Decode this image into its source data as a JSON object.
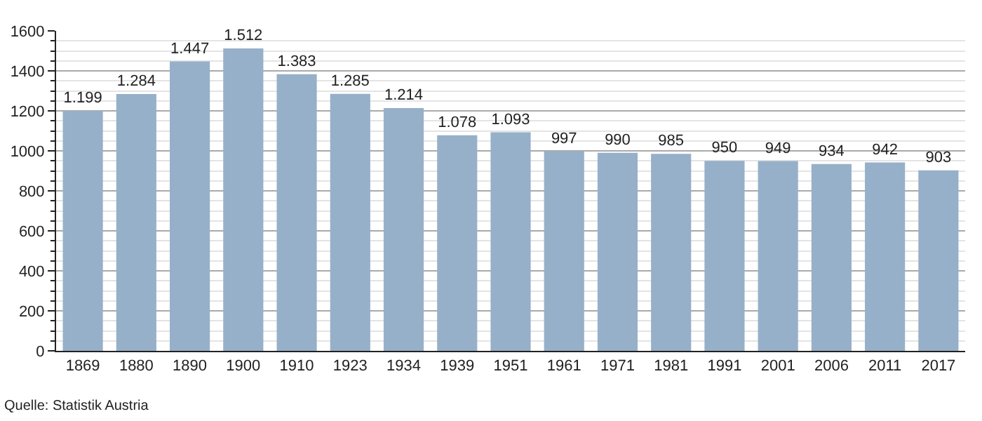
{
  "chart_data": {
    "type": "bar",
    "categories": [
      "1869",
      "1880",
      "1890",
      "1900",
      "1910",
      "1923",
      "1934",
      "1939",
      "1951",
      "1961",
      "1971",
      "1981",
      "1991",
      "2001",
      "2006",
      "2011",
      "2017"
    ],
    "values": [
      1199,
      1284,
      1447,
      1512,
      1383,
      1285,
      1214,
      1078,
      1093,
      997,
      990,
      985,
      950,
      949,
      934,
      942,
      903
    ],
    "value_labels": [
      "1.199",
      "1.284",
      "1.447",
      "1.512",
      "1.383",
      "1.285",
      "1.214",
      "1.078",
      "1.093",
      "997",
      "990",
      "985",
      "950",
      "949",
      "934",
      "942",
      "903"
    ],
    "color": "#97b0c9",
    "ylim": [
      0,
      1600
    ],
    "yticks": [
      0,
      {
        "value": 50,
        "label": null
      },
      {
        "value": 100,
        "label": null
      },
      {
        "value": 150,
        "label": null
      },
      200,
      {
        "value": 250,
        "label": null
      },
      {
        "value": 300,
        "label": null
      },
      {
        "value": 350,
        "label": null
      },
      400,
      {
        "value": 450,
        "label": null
      },
      {
        "value": 500,
        "label": null
      },
      {
        "value": 550,
        "label": null
      },
      600,
      {
        "value": 650,
        "label": null
      },
      {
        "value": 700,
        "label": null
      },
      {
        "value": 750,
        "label": null
      },
      800,
      {
        "value": 850,
        "label": null
      },
      {
        "value": 900,
        "label": null
      },
      {
        "value": 950,
        "label": null
      },
      1000,
      {
        "value": 1050,
        "label": null
      },
      {
        "value": 1100,
        "label": null
      },
      {
        "value": 1150,
        "label": null
      },
      1200,
      {
        "value": 1250,
        "label": null
      },
      {
        "value": 1300,
        "label": null
      },
      {
        "value": 1350,
        "label": null
      },
      1400,
      {
        "value": 1450,
        "label": null
      },
      {
        "value": 1500,
        "label": null
      },
      {
        "value": 1550,
        "label": null
      },
      1600
    ],
    "grid": "y",
    "annotations": [
      "Quelle: Statistik Austria"
    ]
  }
}
